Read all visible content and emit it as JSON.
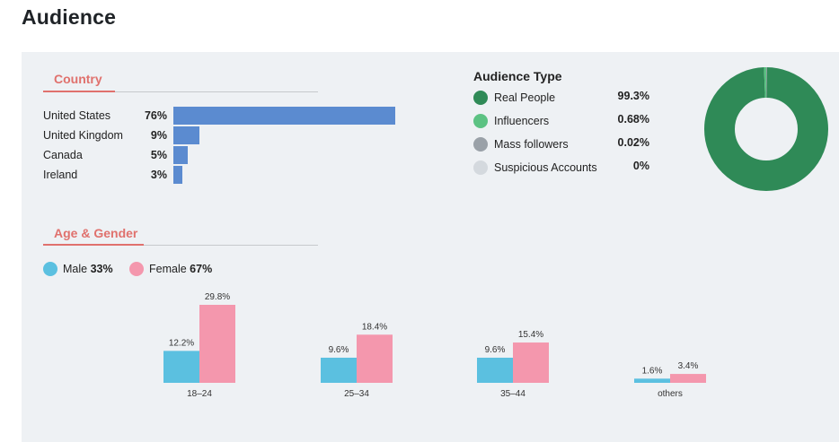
{
  "page": {
    "title": "Audience"
  },
  "country": {
    "section_label": "Country",
    "rows": [
      {
        "name": "United States",
        "pct_label": "76%",
        "value": 76
      },
      {
        "name": "United Kingdom",
        "pct_label": "9%",
        "value": 9
      },
      {
        "name": "Canada",
        "pct_label": "5%",
        "value": 5
      },
      {
        "name": "Ireland",
        "pct_label": "3%",
        "value": 3
      }
    ],
    "bar_color": "#5b8bd0"
  },
  "audience_type": {
    "title": "Audience Type",
    "items": [
      {
        "label": "Real People",
        "value_label": "99.3%",
        "value": 99.3,
        "color": "#2f8a57"
      },
      {
        "label": "Influencers",
        "value_label": "0.68%",
        "value": 0.68,
        "color": "#5cc283"
      },
      {
        "label": "Mass followers",
        "value_label": "0.02%",
        "value": 0.02,
        "color": "#9aa1a8"
      },
      {
        "label": "Suspicious Accounts",
        "value_label": "0%",
        "value": 0,
        "color": "#d4d9de"
      }
    ]
  },
  "age_gender": {
    "section_label": "Age & Gender",
    "legend": {
      "male_label": "Male",
      "male_value": "33%",
      "female_label": "Female",
      "female_value": "67%"
    },
    "colors": {
      "male": "#5bc0e0",
      "female": "#f497ad"
    }
  },
  "chart_data": [
    {
      "type": "bar",
      "title": "Country",
      "categories": [
        "United States",
        "United Kingdom",
        "Canada",
        "Ireland"
      ],
      "values": [
        76,
        9,
        5,
        3
      ],
      "orientation": "horizontal",
      "xlim": [
        0,
        76
      ]
    },
    {
      "type": "pie",
      "title": "Audience Type",
      "categories": [
        "Real People",
        "Influencers",
        "Mass followers",
        "Suspicious Accounts"
      ],
      "values": [
        99.3,
        0.68,
        0.02,
        0
      ],
      "style": "donut"
    },
    {
      "type": "bar",
      "title": "Age & Gender",
      "categories": [
        "18–24",
        "25–34",
        "35–44",
        "others"
      ],
      "series": [
        {
          "name": "Male",
          "values": [
            12.2,
            9.6,
            9.6,
            1.6
          ],
          "labels": [
            "12.2%",
            "9.6%",
            "9.6%",
            "1.6%"
          ]
        },
        {
          "name": "Female",
          "values": [
            29.8,
            18.4,
            15.4,
            3.4
          ],
          "labels": [
            "29.8%",
            "18.4%",
            "15.4%",
            "3.4%"
          ]
        }
      ],
      "ylim": [
        0,
        29.8
      ],
      "grid": false
    }
  ]
}
